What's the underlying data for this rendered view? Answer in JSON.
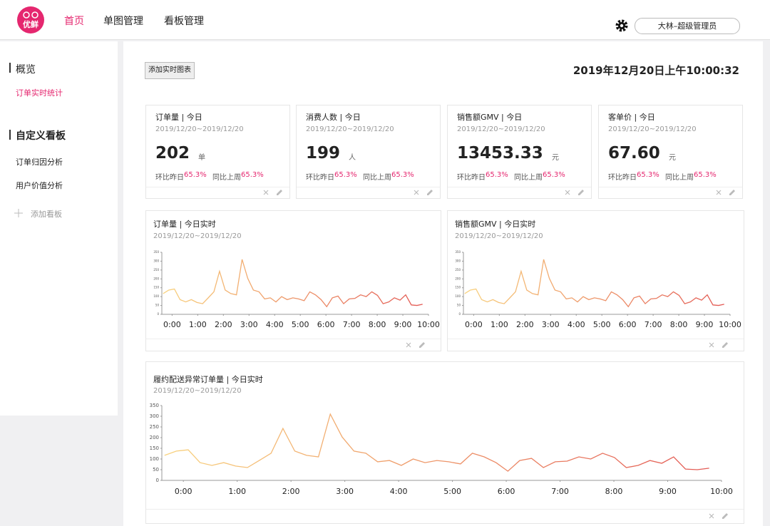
{
  "header": {
    "logo_text": "优鲜",
    "nav": [
      "首页",
      "单图管理",
      "看板管理"
    ],
    "user": "大林–超级管理员"
  },
  "sidebar": {
    "sections": [
      {
        "title": "概览",
        "items": [
          "订单实时统计"
        ]
      },
      {
        "title": "自定义看板",
        "items": [
          "订单归因分析",
          "用户价值分析"
        ]
      }
    ],
    "add": "添加看板"
  },
  "toolbar": {
    "button": "添加实时图表",
    "datetime": "2019年12月20日上午10:00:32"
  },
  "kpis": [
    {
      "title": "订单量 | 今日",
      "date": "2019/12/20~2019/12/20",
      "value": "202",
      "unit": "单",
      "comparisons": [
        {
          "label": "环比昨日",
          "value": "65.3%"
        },
        {
          "label": "同比上周",
          "value": "65.3%"
        }
      ]
    },
    {
      "title": "消费人数 | 今日",
      "date": "2019/12/20~2019/12/20",
      "value": "199",
      "unit": "人",
      "comparisons": [
        {
          "label": "环比昨日",
          "value": "65.3%"
        },
        {
          "label": "同比上周",
          "value": "65.3%"
        }
      ]
    },
    {
      "title": "销售额GMV | 今日",
      "date": "2019/12/20~2019/12/20",
      "value": "13453.33",
      "unit": "元",
      "comparisons": [
        {
          "label": "环比昨日",
          "value": "65.3%"
        },
        {
          "label": "同比上周",
          "value": "65.3%"
        }
      ]
    },
    {
      "title": "客单价 | 今日",
      "date": "2019/12/20~2019/12/20",
      "value": "67.60",
      "unit": "元",
      "comparisons": [
        {
          "label": "环比昨日",
          "value": "65.3%"
        },
        {
          "label": "同比上周",
          "value": "65.3%"
        }
      ]
    }
  ],
  "chart_data": [
    {
      "type": "line",
      "title": "订单量 | 今日实时",
      "subtitle": "2019/12/20~2019/12/20",
      "color": [
        "#f8d27e",
        "#e35a55"
      ],
      "x": [
        -0.35,
        -0.13,
        0.09,
        0.31,
        0.53,
        0.75,
        0.97,
        1.19,
        1.41,
        1.63,
        1.85,
        2.07,
        2.29,
        2.51,
        2.73,
        2.95,
        3.17,
        3.39,
        3.61,
        3.83,
        4.05,
        4.27,
        4.49,
        4.71,
        4.93,
        5.15,
        5.37,
        5.59,
        5.81,
        6.03,
        6.25,
        6.47,
        6.69,
        6.91,
        7.13,
        7.35,
        7.57,
        7.79,
        8.01,
        8.23,
        8.45,
        8.67,
        8.89,
        9.11,
        9.33,
        9.55,
        9.77
      ],
      "values": [
        117,
        137,
        143,
        83,
        70,
        83,
        67,
        60,
        93,
        127,
        243,
        137,
        117,
        110,
        310,
        203,
        137,
        127,
        87,
        93,
        70,
        100,
        83,
        93,
        87,
        77,
        127,
        110,
        83,
        43,
        93,
        103,
        60,
        87,
        90,
        110,
        100,
        127,
        107,
        60,
        70,
        93,
        80,
        110,
        53,
        50,
        57
      ],
      "xlim": [
        -0.4,
        10
      ],
      "ylim": [
        0,
        350
      ],
      "yticks": [
        0,
        50,
        100,
        150,
        200,
        250,
        300,
        350
      ],
      "xticks": [
        {
          "value": 0,
          "label": "0:00"
        },
        {
          "value": 1,
          "label": "1:00"
        },
        {
          "value": 2,
          "label": "2:00"
        },
        {
          "value": 3,
          "label": "3:00"
        },
        {
          "value": 4,
          "label": "4:00"
        },
        {
          "value": 5,
          "label": "5:00"
        },
        {
          "value": 6,
          "label": "6:00"
        },
        {
          "value": 7,
          "label": "7:00"
        },
        {
          "value": 8,
          "label": "8:00"
        },
        {
          "value": 9,
          "label": "9:00"
        },
        {
          "value": 10,
          "label": "10:00"
        }
      ]
    },
    {
      "type": "line",
      "title": "销售额GMV | 今日实时",
      "subtitle": "2019/12/20~2019/12/20",
      "color": [
        "#f8d27e",
        "#e35a55"
      ],
      "x": [
        -0.35,
        -0.13,
        0.09,
        0.31,
        0.53,
        0.75,
        0.97,
        1.19,
        1.41,
        1.63,
        1.85,
        2.07,
        2.29,
        2.51,
        2.73,
        2.95,
        3.17,
        3.39,
        3.61,
        3.83,
        4.05,
        4.27,
        4.49,
        4.71,
        4.93,
        5.15,
        5.37,
        5.59,
        5.81,
        6.03,
        6.25,
        6.47,
        6.69,
        6.91,
        7.13,
        7.35,
        7.57,
        7.79,
        8.01,
        8.23,
        8.45,
        8.67,
        8.89,
        9.11,
        9.33,
        9.55,
        9.77
      ],
      "values": [
        117,
        137,
        143,
        83,
        70,
        83,
        67,
        60,
        93,
        127,
        243,
        137,
        117,
        110,
        310,
        203,
        137,
        127,
        87,
        93,
        70,
        100,
        83,
        93,
        87,
        77,
        127,
        110,
        83,
        43,
        93,
        103,
        60,
        87,
        90,
        110,
        100,
        127,
        107,
        60,
        70,
        93,
        80,
        110,
        53,
        50,
        57
      ],
      "xlim": [
        -0.4,
        10
      ],
      "ylim": [
        0,
        350
      ],
      "yticks": [
        0,
        50,
        100,
        150,
        200,
        250,
        300,
        350
      ],
      "xticks": [
        {
          "value": 0,
          "label": "0:00"
        },
        {
          "value": 1,
          "label": "1:00"
        },
        {
          "value": 2,
          "label": "2:00"
        },
        {
          "value": 3,
          "label": "3:00"
        },
        {
          "value": 4,
          "label": "4:00"
        },
        {
          "value": 5,
          "label": "5:00"
        },
        {
          "value": 6,
          "label": "6:00"
        },
        {
          "value": 7,
          "label": "7:00"
        },
        {
          "value": 8,
          "label": "8:00"
        },
        {
          "value": 9,
          "label": "9:00"
        },
        {
          "value": 10,
          "label": "10:00"
        }
      ]
    },
    {
      "type": "line",
      "title": "履约配送异常订单量 | 今日实时",
      "subtitle": "2019/12/20~2019/12/20",
      "color": [
        "#f8d27e",
        "#e35a55"
      ],
      "x": [
        -0.35,
        -0.13,
        0.09,
        0.31,
        0.53,
        0.75,
        0.97,
        1.19,
        1.41,
        1.63,
        1.85,
        2.07,
        2.29,
        2.51,
        2.73,
        2.95,
        3.17,
        3.39,
        3.61,
        3.83,
        4.05,
        4.27,
        4.49,
        4.71,
        4.93,
        5.15,
        5.37,
        5.59,
        5.81,
        6.03,
        6.25,
        6.47,
        6.69,
        6.91,
        7.13,
        7.35,
        7.57,
        7.79,
        8.01,
        8.23,
        8.45,
        8.67,
        8.89,
        9.11,
        9.33,
        9.55,
        9.77
      ],
      "values": [
        117,
        137,
        143,
        83,
        70,
        83,
        67,
        60,
        93,
        127,
        243,
        137,
        117,
        110,
        310,
        203,
        137,
        127,
        87,
        93,
        70,
        100,
        83,
        93,
        87,
        77,
        127,
        110,
        83,
        43,
        93,
        103,
        60,
        87,
        90,
        110,
        100,
        127,
        107,
        60,
        70,
        93,
        80,
        110,
        53,
        50,
        57
      ],
      "xlim": [
        -0.4,
        10
      ],
      "ylim": [
        0,
        350
      ],
      "yticks": [
        0,
        50,
        100,
        150,
        200,
        250,
        300,
        350
      ],
      "xticks": [
        {
          "value": 0,
          "label": "0:00"
        },
        {
          "value": 1,
          "label": "1:00"
        },
        {
          "value": 2,
          "label": "2:00"
        },
        {
          "value": 3,
          "label": "3:00"
        },
        {
          "value": 4,
          "label": "4:00"
        },
        {
          "value": 5,
          "label": "5:00"
        },
        {
          "value": 6,
          "label": "6:00"
        },
        {
          "value": 7,
          "label": "7:00"
        },
        {
          "value": 8,
          "label": "8:00"
        },
        {
          "value": 9,
          "label": "9:00"
        },
        {
          "value": 10,
          "label": "10:00"
        }
      ]
    }
  ]
}
